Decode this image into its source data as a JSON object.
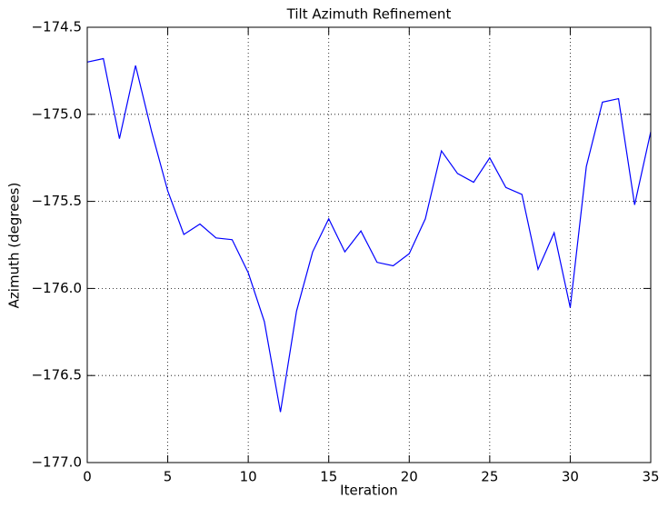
{
  "chart_data": {
    "type": "line",
    "title": "Tilt Azimuth Refinement",
    "x_label": "Iteration",
    "y_label": "Azimuth (degrees)",
    "x": [
      0,
      1,
      2,
      3,
      4,
      5,
      6,
      7,
      8,
      9,
      10,
      11,
      12,
      13,
      14,
      15,
      16,
      17,
      18,
      19,
      20,
      21,
      22,
      23,
      24,
      25,
      26,
      27,
      28,
      29,
      30,
      31,
      32,
      33,
      34,
      35
    ],
    "series": [
      {
        "color": "#0000ff",
        "values": [
          -174.7,
          -174.68,
          -175.14,
          -174.72,
          -175.1,
          -175.44,
          -175.69,
          -175.63,
          -175.71,
          -175.72,
          -175.91,
          -176.19,
          -176.71,
          -176.13,
          -175.79,
          -175.6,
          -175.79,
          -175.67,
          -175.85,
          -175.87,
          -175.8,
          -175.6,
          -175.21,
          -175.34,
          -175.39,
          -175.25,
          -175.42,
          -175.46,
          -175.89,
          -175.68,
          -176.11,
          -175.3,
          -174.93,
          -174.91,
          -175.52,
          -175.1
        ]
      }
    ],
    "xlim": [
      0,
      35
    ],
    "xticks": [
      0,
      5,
      10,
      15,
      20,
      25,
      30,
      35
    ],
    "ylim": [
      -177.0,
      -174.5
    ],
    "yticks": [
      {
        "value": -177.0,
        "label": "−177.0"
      },
      {
        "value": -176.5,
        "label": "−176.5"
      },
      {
        "value": -176.0,
        "label": "−176.0"
      },
      {
        "value": -175.5,
        "label": "−175.5"
      },
      {
        "value": -175.0,
        "label": "−175.0"
      },
      {
        "value": -174.5,
        "label": "−174.5"
      }
    ],
    "grid": true
  }
}
